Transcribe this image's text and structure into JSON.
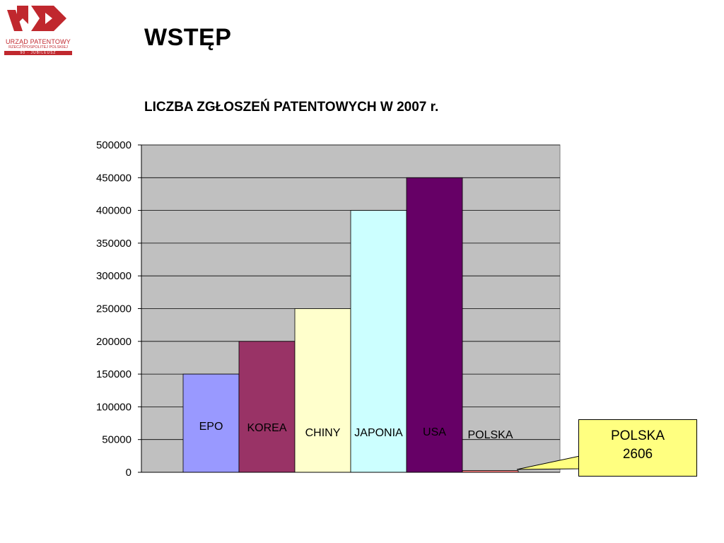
{
  "slide": {
    "title": "WSTĘP"
  },
  "logo": {
    "line1": "URZĄD PATENTOWY",
    "line2": "RZECZYPOSPOLITEJ POLSKIEJ",
    "band": "90 · JUBILEUSZ"
  },
  "chart_data": {
    "type": "bar",
    "title": "LICZBA ZGŁOSZEŃ PATENTOWYCH W 2007 r.",
    "xlabel": "",
    "ylabel": "",
    "categories": [
      "EPO",
      "KOREA",
      "CHINY",
      "JAPONIA",
      "USA",
      "POLSKA"
    ],
    "values": [
      150000,
      200000,
      250000,
      400000,
      450000,
      2606
    ],
    "colors": [
      "#9999ff",
      "#993366",
      "#ffffcc",
      "#ccffff",
      "#660066",
      "#ff8080"
    ],
    "label_colors": [
      "#000000",
      "#000000",
      "#000000",
      "#000000",
      "#000000",
      "#000000"
    ],
    "ylim": [
      0,
      500000
    ],
    "yticks": [
      "0",
      "50000",
      "100000",
      "150000",
      "200000",
      "250000",
      "300000",
      "350000",
      "400000",
      "450000",
      "500000"
    ],
    "plot_background": "#c0c0c0",
    "grid": true,
    "legend": "none",
    "callout": {
      "line1": "POLSKA",
      "line2": "2606"
    }
  }
}
